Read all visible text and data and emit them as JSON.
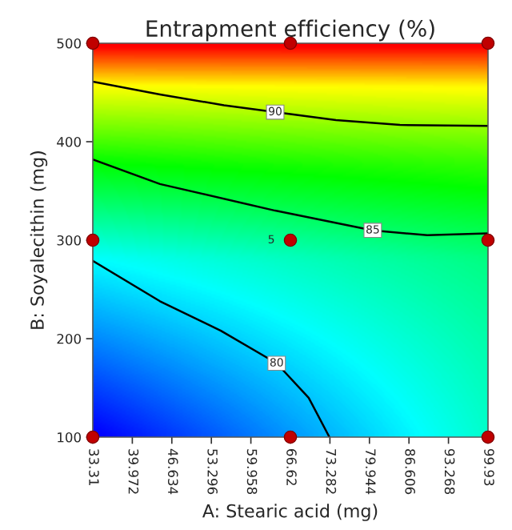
{
  "chart_data": {
    "type": "line",
    "title": "Entrapment efficiency (%)",
    "xlabel": "A: Stearic acid (mg)",
    "ylabel": "B: Soyalecithin (mg)",
    "xlim": [
      33.31,
      99.93
    ],
    "ylim": [
      100,
      500
    ],
    "xticks": [
      33.31,
      39.972,
      46.634,
      53.296,
      59.958,
      66.62,
      73.282,
      79.944,
      86.606,
      93.268,
      99.93
    ],
    "yticks": [
      100,
      200,
      300,
      400,
      500
    ],
    "series": [
      {
        "name": "90",
        "color": "#000000",
        "x": [
          33.31,
          44.64,
          55.43,
          64.06,
          74.3,
          85.1,
          99.93
        ],
        "values": [
          461,
          448,
          437,
          430,
          422,
          417,
          416
        ]
      },
      {
        "name": "85",
        "color": "#000000",
        "x": [
          33.31,
          44.64,
          64.06,
          80.5,
          89.7,
          99.93
        ],
        "values": [
          382,
          357,
          330,
          310,
          305,
          307
        ]
      },
      {
        "name": "80",
        "color": "#000000",
        "x": [
          33.31,
          44.64,
          54.9,
          64.3,
          69.7,
          73.2
        ],
        "values": [
          279,
          238,
          208,
          175,
          140,
          100
        ]
      },
      {
        "type": "scatter",
        "color": "#c00000",
        "marker": "circle",
        "x": [
          33.31,
          66.62,
          99.93,
          33.31,
          66.62,
          99.93,
          33.31,
          66.62,
          99.93
        ],
        "values": [
          100,
          100,
          100,
          300,
          300,
          300,
          500,
          500,
          500
        ]
      }
    ],
    "annotations": [
      {
        "text": "5",
        "x": 66.62,
        "y": 300
      }
    ],
    "grid": false,
    "legend": false
  }
}
